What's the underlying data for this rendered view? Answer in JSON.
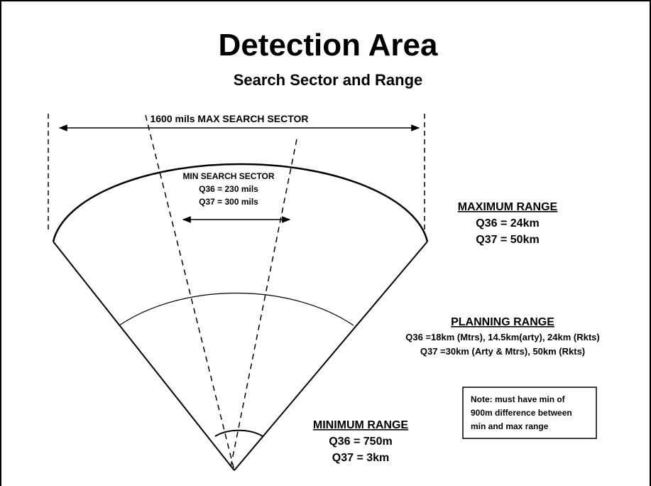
{
  "title": "Detection Area",
  "subtitle": "Search Sector and Range",
  "max_search_sector": "1600 mils MAX SEARCH SECTOR",
  "min_search_sector": {
    "heading": "MIN SEARCH SECTOR",
    "lines": [
      "Q36 = 230 mils",
      "Q37 = 300 mils"
    ]
  },
  "maximum_range": {
    "heading": "MAXIMUM RANGE",
    "lines": [
      "Q36 = 24km",
      "Q37 = 50km"
    ]
  },
  "planning_range": {
    "heading": "PLANNING  RANGE",
    "lines": [
      "Q36 =18km (Mtrs), 14.5km(arty),  24km (Rkts)",
      "Q37 =30km (Arty & Mtrs),  50km (Rkts)"
    ]
  },
  "minimum_range": {
    "heading": "MINIMUM RANGE",
    "lines": [
      "Q36 = 750m",
      "Q37 = 3km"
    ]
  },
  "note": {
    "lines": [
      "Note: must have min of",
      "900m difference between",
      "min and max range"
    ]
  }
}
